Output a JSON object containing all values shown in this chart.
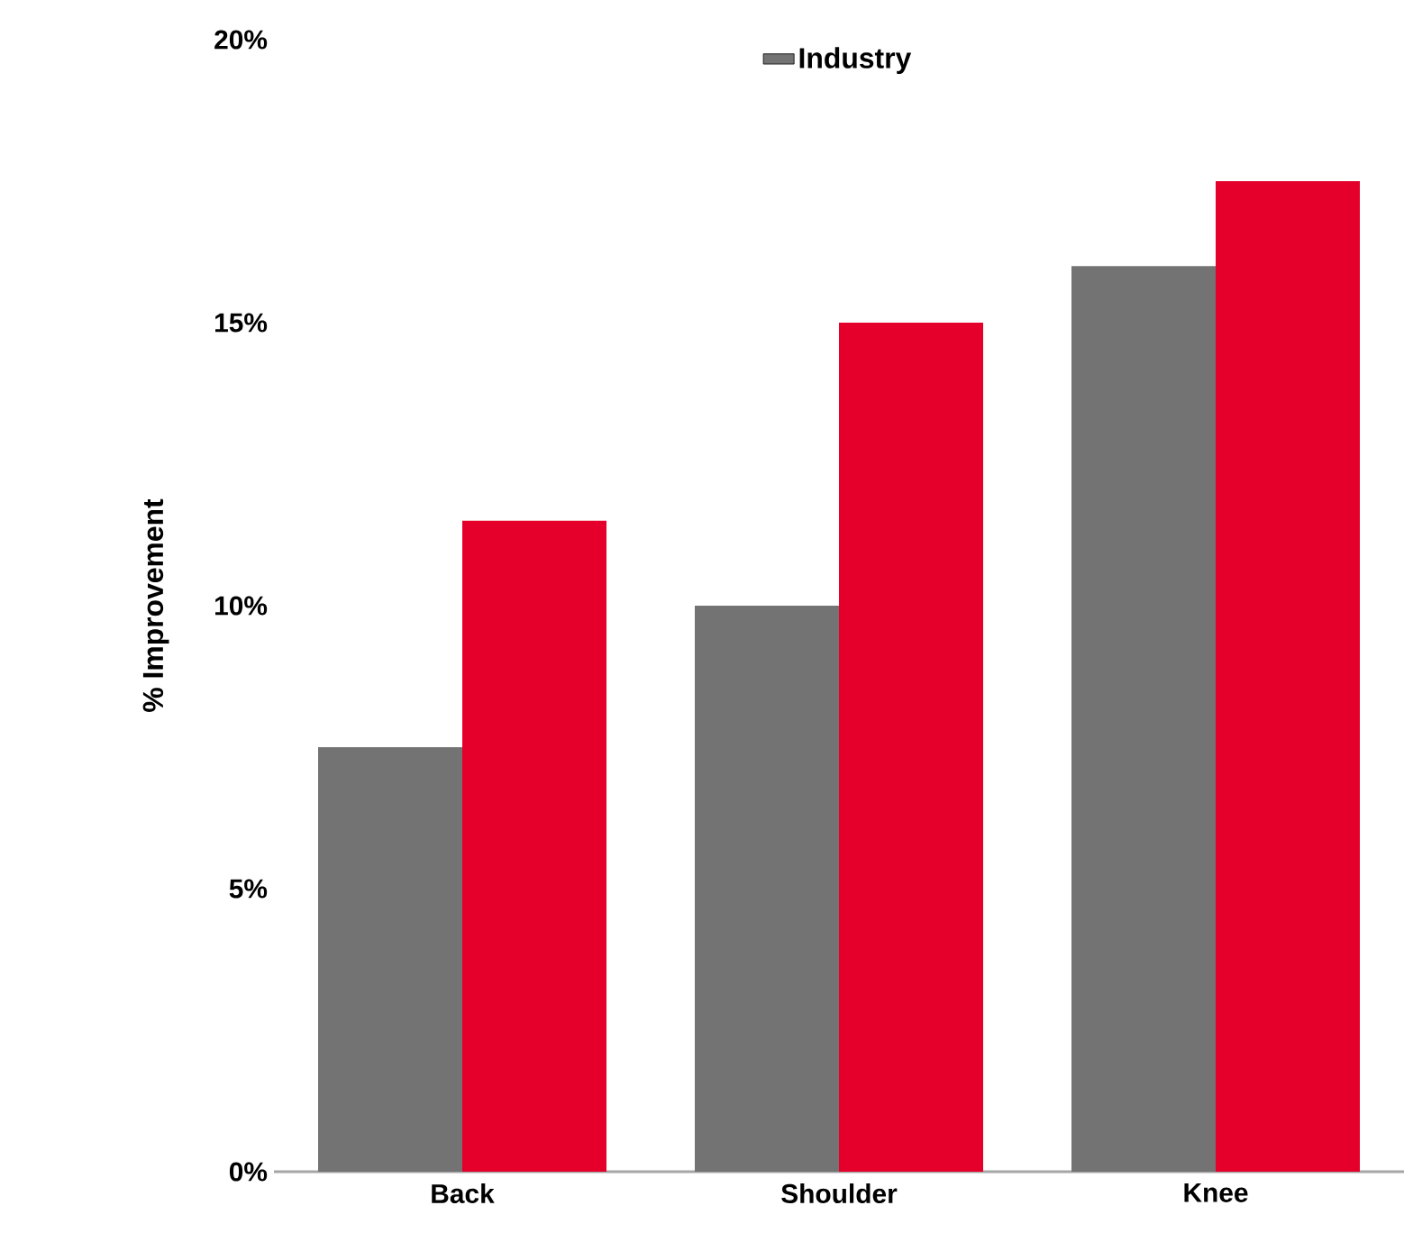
{
  "chart_data": {
    "type": "bar",
    "ylabel": "% Improvement",
    "categories": [
      "Back",
      "Shoulder",
      "Knee"
    ],
    "series": [
      {
        "name": "Industry",
        "color": "#737373",
        "values": [
          7.5,
          10,
          16
        ]
      },
      {
        "color": "#e4002b",
        "values": [
          11.5,
          15,
          17.5
        ]
      }
    ],
    "ylim": [
      0,
      20
    ],
    "yticks": [
      {
        "value": 0,
        "label": "0%"
      },
      {
        "value": 5,
        "label": "5%"
      },
      {
        "value": 10,
        "label": "10%"
      },
      {
        "value": 15,
        "label": "15%"
      },
      {
        "value": 20,
        "label": "20%"
      }
    ],
    "legend": "top",
    "grid": false
  }
}
